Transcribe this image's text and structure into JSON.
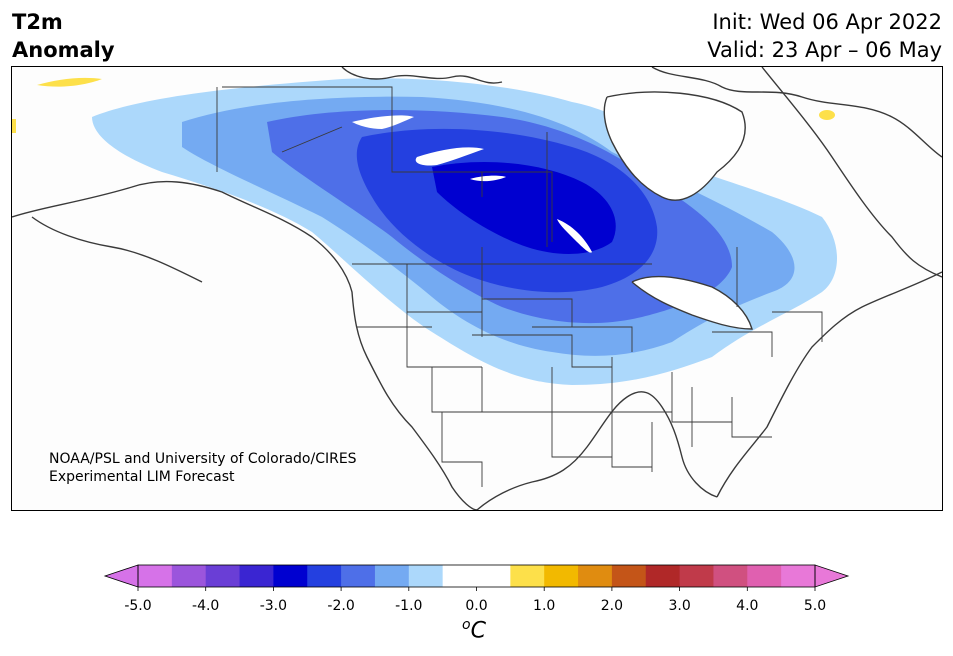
{
  "title": {
    "left_line1": "T2m",
    "left_line2": "Anomaly",
    "init": "Init: Wed 06 Apr 2022",
    "valid": "Valid: 23 Apr – 06 May"
  },
  "credit": {
    "line1": "NOAA/PSL and University of Colorado/CIRES",
    "line2": "Experimental LIM Forecast"
  },
  "colorbar": {
    "unit_base": "C",
    "unit_sup": "o",
    "ticks": [
      "-5.0",
      "-4.0",
      "-3.0",
      "-2.0",
      "-1.0",
      "0.0",
      "1.0",
      "2.0",
      "3.0",
      "4.0",
      "5.0"
    ],
    "colors": [
      "#d672e8",
      "#9b55dc",
      "#6a3ed6",
      "#3a25d2",
      "#0000d0",
      "#2440e0",
      "#4e6fe8",
      "#74aaf2",
      "#acd8fb",
      "#ffffff",
      "#ffffff",
      "#fde04a",
      "#f2b900",
      "#e08c10",
      "#c45518",
      "#b02828",
      "#c03a4a",
      "#d05080",
      "#e060b0",
      "#e878d8"
    ],
    "under_color": "#d672e8",
    "over_color": "#e878d8"
  },
  "map": {
    "region": "North America",
    "anomaly_colors": {
      "minus_0_5": "#acd8fb",
      "minus_1_0": "#74aaf2",
      "minus_1_5": "#4e6fe8",
      "minus_2_0": "#2440e0",
      "minus_2_5": "#0000d0",
      "plus_0_5": "#fde04a"
    }
  }
}
